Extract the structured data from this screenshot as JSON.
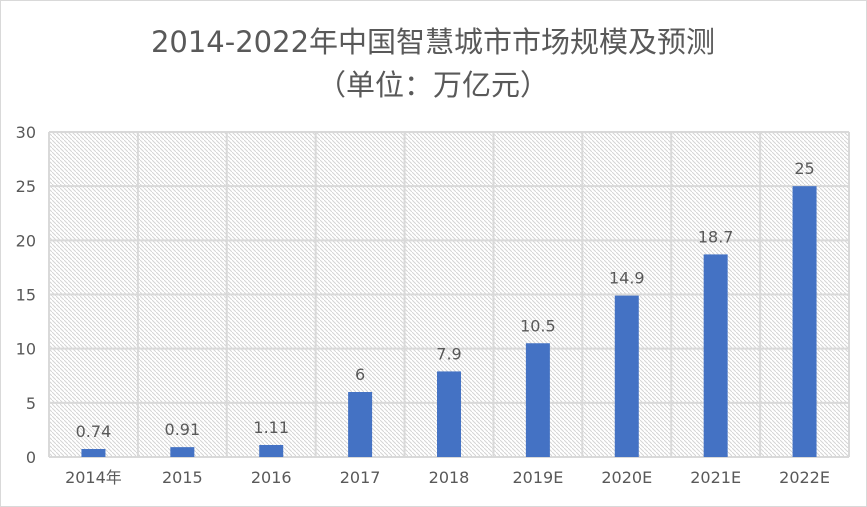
{
  "chart_data": {
    "type": "bar",
    "title_line1": "2014-2022年中国智慧城市市场规模及预测",
    "title_line2": "（单位：万亿元）",
    "categories": [
      "2014年",
      "2015",
      "2016",
      "2017",
      "2018",
      "2019E",
      "2020E",
      "2021E",
      "2022E"
    ],
    "values": [
      0.74,
      0.91,
      1.11,
      6,
      7.9,
      10.5,
      14.9,
      18.7,
      25
    ],
    "data_labels": [
      "0.74",
      "0.91",
      "1.11",
      "6",
      "7.9",
      "10.5",
      "14.9",
      "18.7",
      "25"
    ],
    "ylim": [
      0,
      30
    ],
    "yticks": [
      0,
      5,
      10,
      15,
      20,
      25,
      30
    ],
    "xlabel": "",
    "ylabel": "",
    "grid": true,
    "bar_color": "#4472c4"
  }
}
